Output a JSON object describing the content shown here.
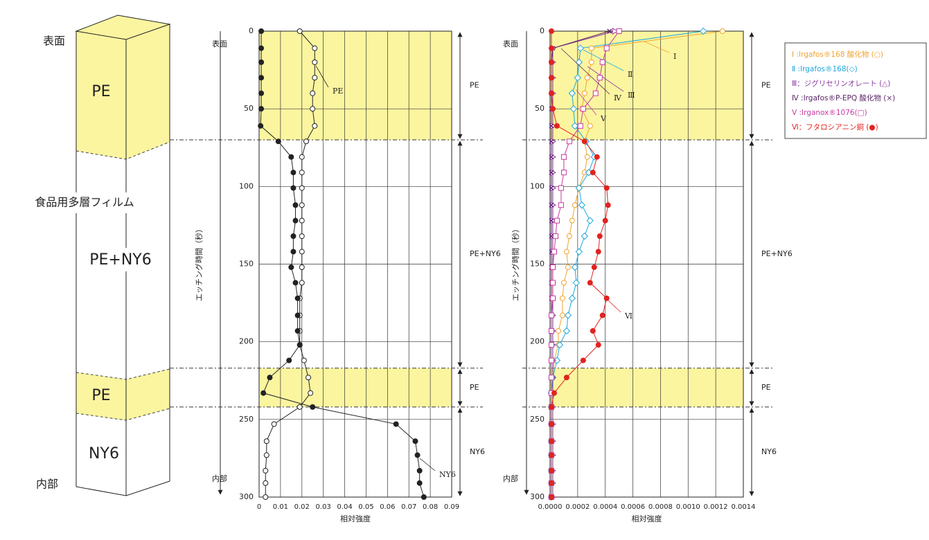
{
  "diagram": {
    "top_label": "表面",
    "bottom_label": "内部",
    "film_label": "食品用多層フィルム",
    "layers": [
      "PE",
      "PE+NY6",
      "PE",
      "NY6"
    ]
  },
  "chart_data": [
    {
      "type": "line",
      "x_label": "相対強度",
      "y_label": "エッチング時間（秒）",
      "top_label": "表面",
      "bottom_label": "内部",
      "times": [
        0,
        11,
        20,
        30,
        40,
        50,
        61,
        71,
        81,
        91,
        101,
        112,
        122,
        132,
        142,
        152,
        162,
        172,
        183,
        193,
        202,
        212,
        223,
        233,
        242,
        253,
        264,
        273,
        283,
        291,
        300
      ],
      "ylim": [
        0,
        300
      ],
      "y_reversed": true,
      "yticks": [
        0,
        50,
        100,
        150,
        200,
        250,
        300
      ],
      "xlim": [
        0,
        0.09
      ],
      "xticks": [
        0,
        0.01,
        0.02,
        0.03,
        0.04,
        0.05,
        0.06,
        0.07,
        0.08,
        0.09
      ],
      "grid": true,
      "regions": [
        {
          "label": "PE",
          "from": 0,
          "to": 70,
          "shaded": true
        },
        {
          "label": "PE+NY6",
          "from": 70,
          "to": 217,
          "shaded": false
        },
        {
          "label": "PE",
          "from": 217,
          "to": 242,
          "shaded": true
        },
        {
          "label": "NY6",
          "from": 242,
          "to": 300,
          "shaded": false
        }
      ],
      "series": [
        {
          "name": "PE",
          "color": "#222222",
          "marker": "open-circle",
          "values": [
            0.019,
            0.026,
            0.026,
            0.026,
            0.025,
            0.025,
            0.026,
            0.022,
            0.02,
            0.02,
            0.02,
            0.02,
            0.02,
            0.02,
            0.02,
            0.02,
            0.02,
            0.019,
            0.019,
            0.019,
            0.019,
            0.021,
            0.023,
            0.024,
            0.019,
            0.007,
            0.0035,
            0.0035,
            0.003,
            0.003,
            0.003
          ]
        },
        {
          "name": "NY6",
          "color": "#222222",
          "marker": "filled-circle",
          "values": [
            0.001,
            0.001,
            0.001,
            0.001,
            0.001,
            0.001,
            0.0007,
            0.009,
            0.015,
            0.016,
            0.016,
            0.017,
            0.017,
            0.016,
            0.016,
            0.015,
            0.017,
            0.018,
            0.018,
            0.018,
            0.019,
            0.014,
            0.005,
            0.002,
            0.025,
            0.064,
            0.073,
            0.074,
            0.075,
            0.075,
            0.077
          ]
        }
      ]
    },
    {
      "type": "line",
      "x_label": "相対強度",
      "y_label": "エッチング時間（秒）",
      "top_label": "表面",
      "bottom_label": "内部",
      "legend_position": "right",
      "times": [
        0,
        11,
        20,
        30,
        40,
        50,
        61,
        71,
        81,
        91,
        101,
        112,
        122,
        132,
        142,
        152,
        162,
        172,
        183,
        193,
        202,
        212,
        223,
        233,
        242,
        253,
        264,
        273,
        283,
        291,
        300
      ],
      "ylim": [
        0,
        300
      ],
      "y_reversed": true,
      "yticks": [
        0,
        50,
        100,
        150,
        200,
        250,
        300
      ],
      "xlim": [
        0,
        0.0014
      ],
      "xticks": [
        {
          "value": 0,
          "label": "0.0000"
        },
        {
          "value": 0.0002,
          "label": "0.0002"
        },
        {
          "value": 0.0004,
          "label": "0.0004"
        },
        {
          "value": 0.0006,
          "label": "0.0006"
        },
        {
          "value": 0.0008,
          "label": "0.0008"
        },
        {
          "value": 0.001,
          "label": "0.0010"
        },
        {
          "value": 0.0012,
          "label": "0.0012"
        },
        {
          "value": 0.0014,
          "label": "0.0014"
        }
      ],
      "grid": true,
      "regions": [
        {
          "label": "PE",
          "from": 0,
          "to": 70,
          "shaded": true
        },
        {
          "label": "PE+NY6",
          "from": 70,
          "to": 217,
          "shaded": false
        },
        {
          "label": "PE",
          "from": 217,
          "to": 242,
          "shaded": true
        },
        {
          "label": "NY6",
          "from": 242,
          "to": 300,
          "shaded": false
        }
      ],
      "series": [
        {
          "name": "Ⅰ :Irgafos®168 酸化物 (○)",
          "tag": "Ⅰ",
          "color": "#f0a22e",
          "marker": "open-circle",
          "values": [
            0.00125,
            0.0003,
            0.0003,
            0.00027,
            0.00025,
            0.00023,
            0.00029,
            0.00025,
            0.00027,
            0.00025,
            0.00021,
            0.00018,
            0.00016,
            0.00014,
            0.00012,
            0.00013,
            0.0001,
            9e-05,
            9e-05,
            6e-05,
            6e-05,
            3e-05,
            2e-05,
            1e-05,
            1e-05,
            1e-05,
            1e-05,
            1e-05,
            1e-05,
            1e-05,
            1e-05
          ]
        },
        {
          "name": "Ⅱ :Irgafos®168(◇)",
          "tag": "Ⅱ",
          "color": "#1fa6dc",
          "marker": "open-diamond",
          "values": [
            0.00111,
            0.00022,
            0.00021,
            0.0002,
            0.00016,
            0.00017,
            0.00018,
            0.00026,
            0.00032,
            0.00028,
            0.00021,
            0.00023,
            0.00029,
            0.00025,
            0.00021,
            0.00018,
            0.00019,
            0.00016,
            0.00013,
            0.00012,
            7e-05,
            5e-05,
            2e-05,
            1e-05,
            1e-05,
            1e-05,
            1e-05,
            1e-05,
            1e-05,
            1e-05,
            1e-05
          ]
        },
        {
          "name": "Ⅲ：ジグリセリンオレート (△)",
          "tag": "Ⅲ",
          "color": "#8b3aa0",
          "marker": "open-triangle",
          "values": [
            0.00047,
            2e-05,
            2e-05,
            2e-05,
            2e-05,
            2e-05,
            2e-05,
            2e-05,
            2e-05,
            2e-05,
            2e-05,
            2e-05,
            2e-05,
            2e-05,
            2e-05,
            2e-05,
            2e-05,
            2e-05,
            2e-05,
            2e-05,
            2e-05,
            2e-05,
            2e-05,
            2e-05,
            2e-05,
            2e-05,
            2e-05,
            2e-05,
            2e-05,
            2e-05,
            2e-05
          ]
        },
        {
          "name": "Ⅳ :Irgafos®P-EPQ 酸化物 (×)",
          "tag": "Ⅳ",
          "color": "#5b2468",
          "marker": "cross",
          "values": [
            0.00043,
            2e-05,
            1e-05,
            1e-05,
            1e-05,
            1e-05,
            1e-05,
            1e-05,
            1e-05,
            1e-05,
            1e-05,
            1e-05,
            1e-05,
            1e-05,
            1e-05,
            1e-05,
            1e-05,
            1e-05,
            1e-05,
            1e-05,
            1e-05,
            1e-05,
            1e-05,
            1e-05,
            1e-05,
            1e-05,
            1e-05,
            1e-05,
            1e-05,
            1e-05,
            1e-05
          ]
        },
        {
          "name": "Ⅴ :Irganox®1076(□)",
          "tag": "Ⅴ",
          "color": "#c83a9e",
          "marker": "open-square",
          "values": [
            0.0005,
            0.00041,
            0.00038,
            0.00036,
            0.00033,
            0.00024,
            0.00022,
            0.00014,
            0.0001,
            0.0001,
            8e-05,
            8e-05,
            5e-05,
            4e-05,
            3e-05,
            2e-05,
            2e-05,
            2e-05,
            1e-05,
            1e-05,
            1e-05,
            1e-05,
            1e-05,
            1e-05,
            1e-05,
            1e-05,
            1e-05,
            1e-05,
            1e-05,
            1e-05,
            1e-05
          ]
        },
        {
          "name": "Ⅵ：フタロシアニン銅 (●)",
          "tag": "Ⅵ",
          "color": "#e2231f",
          "marker": "filled-circle",
          "values": [
            1e-05,
            1e-05,
            1e-05,
            1e-05,
            1e-05,
            2e-05,
            5e-05,
            0.00025,
            0.00034,
            0.00031,
            0.00041,
            0.00042,
            0.0004,
            0.00036,
            0.00035,
            0.00032,
            0.00029,
            0.00041,
            0.00038,
            0.00031,
            0.00035,
            0.00024,
            0.00012,
            3e-05,
            1e-05,
            1e-05,
            1e-05,
            1e-05,
            1e-05,
            1e-05,
            1e-05
          ]
        }
      ]
    }
  ]
}
